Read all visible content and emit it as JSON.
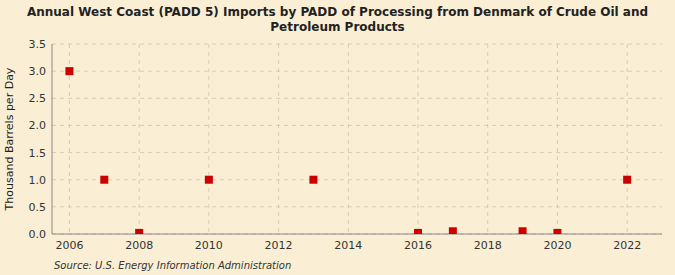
{
  "chart_data": {
    "type": "scatter",
    "title": "Annual West Coast (PADD 5) Imports by PADD of Processing from Denmark of Crude Oil and\nPetroleum Products",
    "ylabel": "Thousand Barrels per Day",
    "source": "Source: U.S. Energy Information Administration",
    "x": [
      2006,
      2007,
      2008,
      2010,
      2013,
      2016,
      2017,
      2019,
      2020,
      2022
    ],
    "values": [
      3.0,
      1.0,
      0.02,
      1.0,
      1.0,
      0.02,
      0.05,
      0.05,
      0.02,
      1.0
    ],
    "color": "#cc0000",
    "marker": "square",
    "grid": true,
    "xlim": [
      2005.5,
      2023.0
    ],
    "ylim": [
      0.0,
      3.5
    ],
    "xticks": [
      2006,
      2008,
      2010,
      2012,
      2014,
      2016,
      2018,
      2020,
      2022
    ],
    "yticks": [
      {
        "value": 0.0,
        "label": "0.0"
      },
      0.5,
      {
        "value": 1.0,
        "label": "1.0"
      },
      1.5,
      {
        "value": 2.0,
        "label": "2.0"
      },
      2.5,
      {
        "value": 3.0,
        "label": "3.0"
      },
      3.5
    ]
  }
}
